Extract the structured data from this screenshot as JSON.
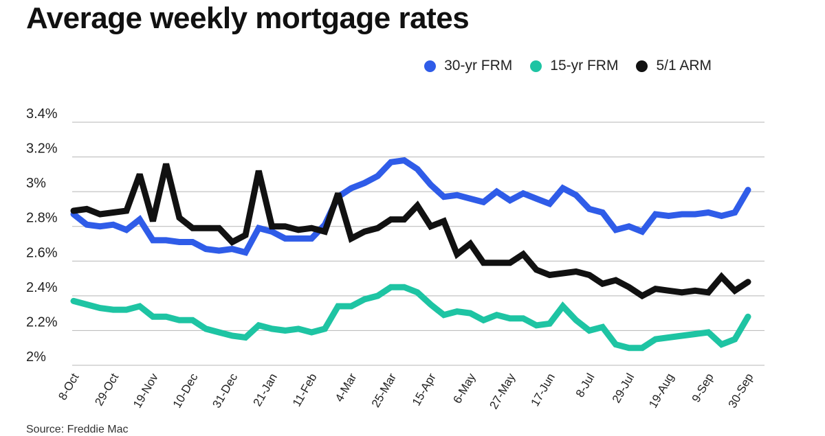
{
  "header": {
    "title": "Average weekly mortgage rates"
  },
  "footer": {
    "source": "Source: Freddie Mac"
  },
  "chart_data": {
    "type": "line",
    "title": "Average weekly mortgage rates",
    "xlabel": "",
    "ylabel": "",
    "ylim": [
      2.0,
      3.4
    ],
    "yticks": [
      2.0,
      2.2,
      2.4,
      2.6,
      2.8,
      3.0,
      3.2,
      3.4
    ],
    "ytick_labels": [
      "2%",
      "2.2%",
      "2.4%",
      "2.6%",
      "2.8%",
      "3%",
      "3.2%",
      "3.4%"
    ],
    "grid": true,
    "legend_position": "top-right",
    "x_tick_indices": [
      0,
      3,
      6,
      9,
      12,
      15,
      18,
      21,
      24,
      27,
      30,
      33,
      36,
      39,
      42,
      45,
      48,
      51
    ],
    "x_tick_labels": [
      "8-Oct",
      "29-Oct",
      "19-Nov",
      "10-Dec",
      "31-Dec",
      "21-Jan",
      "11-Feb",
      "4-Mar",
      "25-Mar",
      "15-Apr",
      "6-May",
      "27-May",
      "17-Jun",
      "8-Jul",
      "29-Jul",
      "19-Aug",
      "9-Sep",
      "30-Sep"
    ],
    "series": [
      {
        "name": "30-yr FRM",
        "color": "#2f5ce8",
        "values": [
          2.87,
          2.81,
          2.8,
          2.81,
          2.78,
          2.84,
          2.72,
          2.72,
          2.71,
          2.71,
          2.67,
          2.66,
          2.67,
          2.65,
          2.79,
          2.77,
          2.73,
          2.73,
          2.73,
          2.81,
          2.97,
          3.02,
          3.05,
          3.09,
          3.17,
          3.18,
          3.13,
          3.04,
          2.97,
          2.98,
          2.96,
          2.94,
          3.0,
          2.95,
          2.99,
          2.96,
          2.93,
          3.02,
          2.98,
          2.9,
          2.88,
          2.78,
          2.8,
          2.77,
          2.87,
          2.86,
          2.87,
          2.87,
          2.88,
          2.86,
          2.88,
          3.01
        ]
      },
      {
        "name": "15-yr FRM",
        "color": "#1ec4a3",
        "values": [
          2.37,
          2.35,
          2.33,
          2.32,
          2.32,
          2.34,
          2.28,
          2.28,
          2.26,
          2.26,
          2.21,
          2.19,
          2.17,
          2.16,
          2.23,
          2.21,
          2.2,
          2.21,
          2.19,
          2.21,
          2.34,
          2.34,
          2.38,
          2.4,
          2.45,
          2.45,
          2.42,
          2.35,
          2.29,
          2.31,
          2.3,
          2.26,
          2.29,
          2.27,
          2.27,
          2.23,
          2.24,
          2.34,
          2.26,
          2.2,
          2.22,
          2.12,
          2.1,
          2.1,
          2.15,
          2.16,
          2.17,
          2.18,
          2.19,
          2.12,
          2.15,
          2.28
        ]
      },
      {
        "name": "5/1 ARM",
        "color": "#111111",
        "values": [
          2.89,
          2.9,
          2.87,
          2.88,
          2.89,
          3.1,
          2.83,
          3.16,
          2.85,
          2.79,
          2.79,
          2.79,
          2.71,
          2.75,
          3.12,
          2.8,
          2.8,
          2.78,
          2.79,
          2.77,
          2.99,
          2.73,
          2.77,
          2.79,
          2.84,
          2.84,
          2.92,
          2.8,
          2.83,
          2.64,
          2.7,
          2.59,
          2.59,
          2.59,
          2.64,
          2.55,
          2.52,
          2.53,
          2.54,
          2.52,
          2.47,
          2.49,
          2.45,
          2.4,
          2.44,
          2.43,
          2.42,
          2.43,
          2.42,
          2.51,
          2.43,
          2.48
        ]
      }
    ]
  }
}
